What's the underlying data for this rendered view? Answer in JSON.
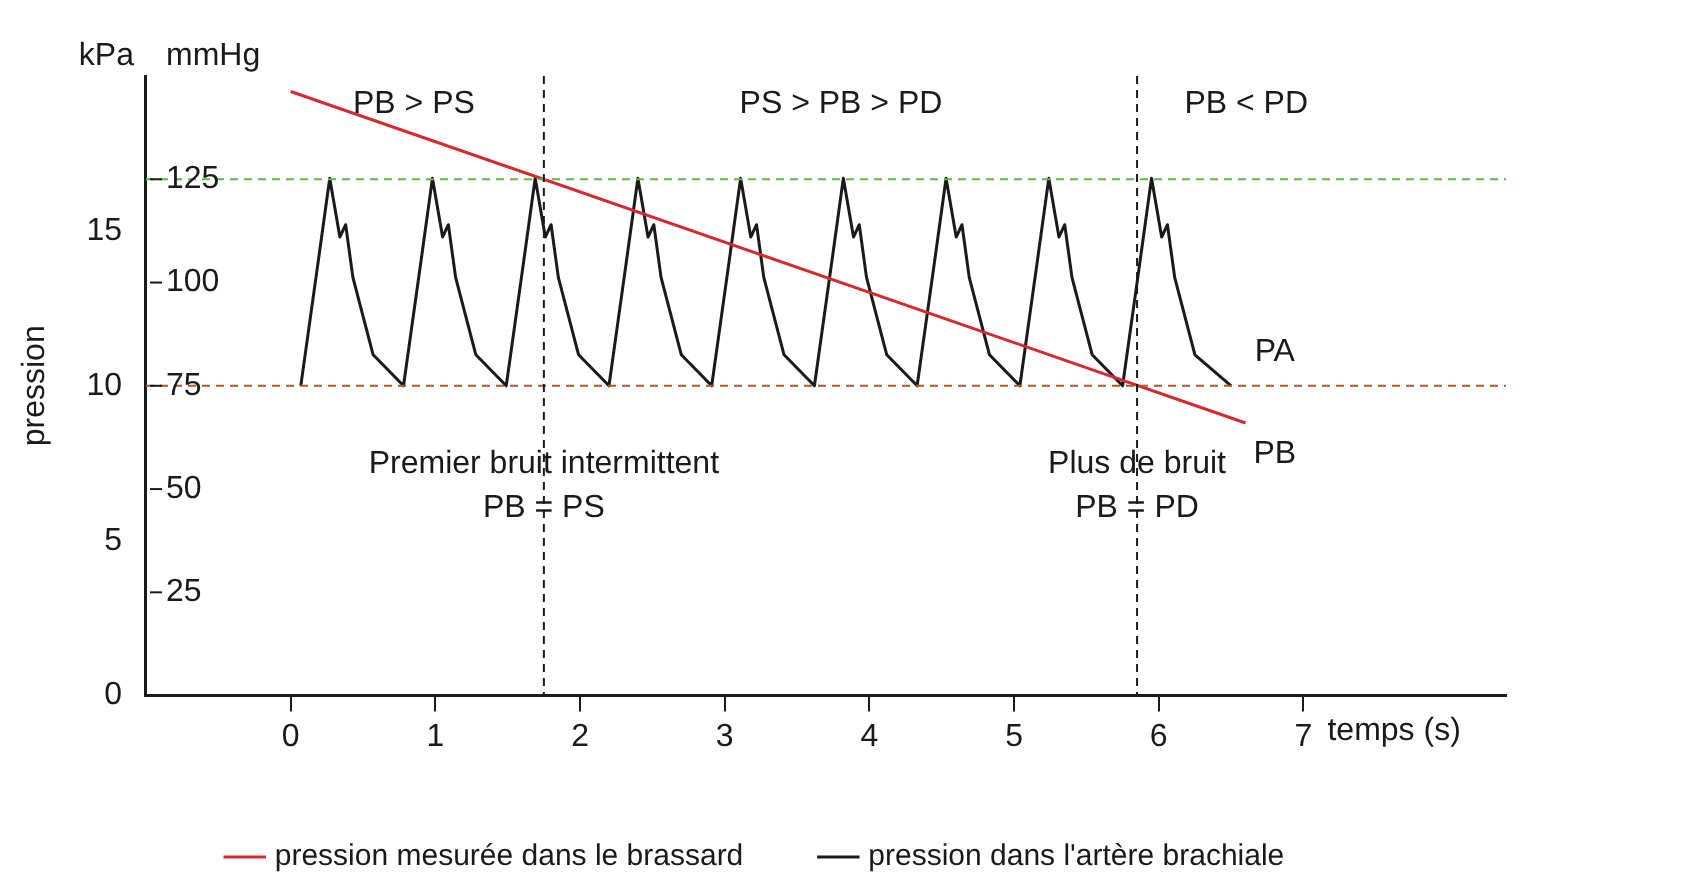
{
  "chart_data": {
    "type": "line",
    "xlabel": "temps (s)",
    "ylabel": "pression",
    "y2label": "mmHg",
    "xlim": [
      -1,
      8.4
    ],
    "xticks": [
      0,
      1,
      2,
      3,
      4,
      5,
      6,
      7
    ],
    "ylim": [
      0,
      20
    ],
    "yticks": [
      0,
      5,
      10,
      15
    ],
    "y2lim": [
      0,
      150
    ],
    "y2ticks": [
      25,
      50,
      75,
      100,
      125
    ],
    "grid": false,
    "legend": "bottom",
    "marker": "none",
    "line_style": "solid",
    "series": [
      {
        "name": "pression mesurée dans le brassard",
        "color": "#d7282f",
        "x": [
          0,
          6.6
        ],
        "values": [
          19.5,
          8.8
        ]
      },
      {
        "name": "pression dans l'artère brachiale",
        "color": "#1a1a1a",
        "x": [
          0.07,
          0.19,
          0.27,
          0.34,
          0.38,
          0.43,
          0.57,
          0.78,
          0.9,
          0.98,
          1.05,
          1.09,
          1.14,
          1.28,
          1.49,
          1.61,
          1.69,
          1.76,
          1.8,
          1.85,
          1.99,
          2.2,
          2.32,
          2.4,
          2.47,
          2.51,
          2.56,
          2.7,
          2.91,
          3.03,
          3.11,
          3.18,
          3.22,
          3.27,
          3.41,
          3.62,
          3.74,
          3.82,
          3.89,
          3.93,
          3.98,
          4.12,
          4.33,
          4.45,
          4.53,
          4.6,
          4.64,
          4.69,
          4.83,
          5.04,
          5.16,
          5.24,
          5.31,
          5.35,
          5.4,
          5.54,
          5.75,
          5.87,
          5.95,
          6.02,
          6.06,
          6.11,
          6.25,
          6.5
        ],
        "values": [
          10,
          14,
          16.7,
          14.8,
          15.2,
          13.5,
          11,
          10,
          14,
          16.7,
          14.8,
          15.2,
          13.5,
          11,
          10,
          14,
          16.7,
          14.8,
          15.2,
          13.5,
          11,
          10,
          14,
          16.7,
          14.8,
          15.2,
          13.5,
          11,
          10,
          14,
          16.7,
          14.8,
          15.2,
          13.5,
          11,
          10,
          14,
          16.7,
          14.8,
          15.2,
          13.5,
          11,
          10,
          14,
          16.7,
          14.8,
          15.2,
          13.5,
          11,
          10,
          14,
          16.7,
          14.8,
          15.2,
          13.5,
          11,
          10,
          14,
          16.7,
          14.8,
          15.2,
          13.5,
          11,
          10
        ]
      }
    ],
    "ref_lines": [
      {
        "axis": "y2",
        "value": 125,
        "color": "#5cb84a",
        "line_style": "dashed"
      },
      {
        "axis": "y2",
        "value": 75,
        "color": "#a85a28",
        "line_style": "dashed"
      },
      {
        "axis": "x",
        "value": 1.75,
        "color": "#1a1a1a",
        "line_style": "dashed"
      },
      {
        "axis": "x",
        "value": 5.85,
        "color": "#1a1a1a",
        "line_style": "dashed"
      }
    ],
    "annotations": [
      "kPa",
      "PB > PS",
      "PS > PB > PD",
      "PB < PD",
      "PA",
      "PB",
      {
        "text": "Premier bruit intermittent\nPB = PS",
        "x": 1.75,
        "y": 8
      },
      {
        "text": "Plus de bruit\nPB = PD",
        "x": 5.85,
        "y": 8
      }
    ]
  }
}
